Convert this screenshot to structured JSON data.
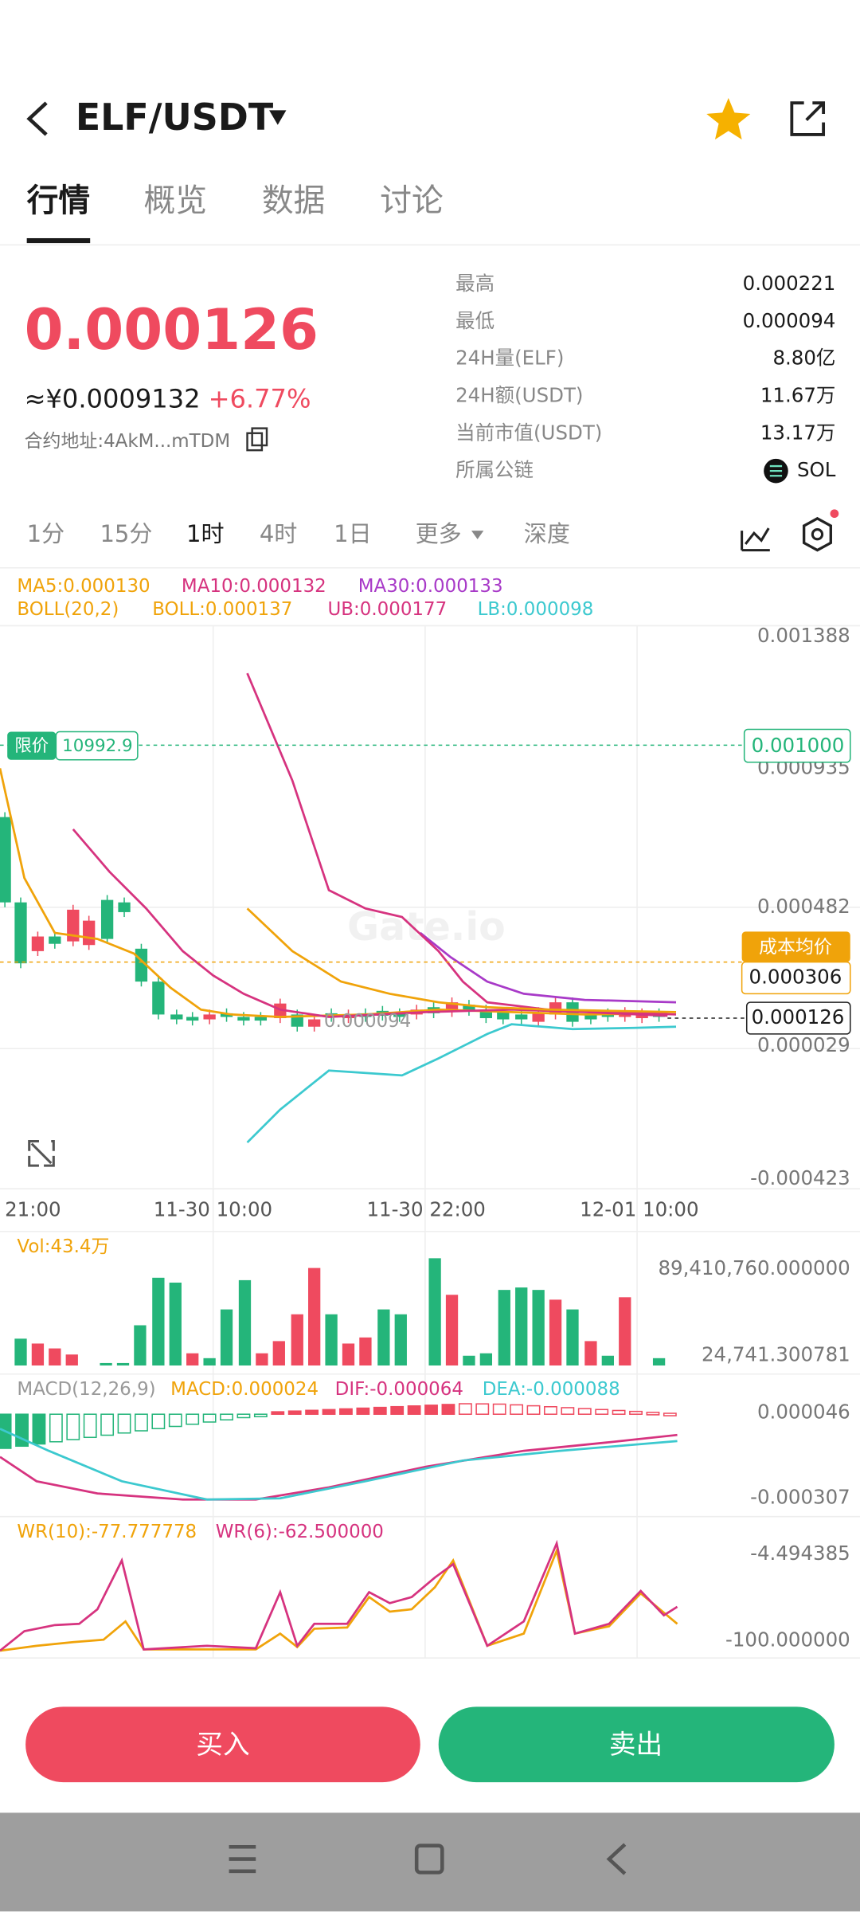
{
  "header": {
    "title": "ELF/USDT"
  },
  "tabs": [
    "行情",
    "概览",
    "数据",
    "讨论"
  ],
  "price": {
    "last": "0.000126",
    "cny": "≈¥0.0009132",
    "change": "+6.77%",
    "contract": "合约地址:4AkM...mTDM"
  },
  "stats": [
    {
      "label": "最高",
      "value": "0.000221"
    },
    {
      "label": "最低",
      "value": "0.000094"
    },
    {
      "label": "24H量(ELF)",
      "value": "8.80亿"
    },
    {
      "label": "24H额(USDT)",
      "value": "11.67万"
    },
    {
      "label": "当前市值(USDT)",
      "value": "13.17万"
    },
    {
      "label": "所属公链",
      "value": "SOL"
    }
  ],
  "timeframes": [
    "1分",
    "15分",
    "1时",
    "4时",
    "1日",
    "更多",
    "深度"
  ],
  "indicators": {
    "ma": [
      "MA5:0.000130",
      "MA10:0.000132",
      "MA30:0.000133"
    ],
    "boll": [
      "BOLL(20,2)",
      "BOLL:0.000137",
      "UB:0.000177",
      "LB:0.000098"
    ]
  },
  "chart": {
    "watermark": "Gate.io",
    "yaxis": [
      "0.001388",
      "0.000935",
      "0.000482",
      "0.000029",
      "-0.000423"
    ],
    "xaxis": [
      "21:00",
      "11-30 10:00",
      "11-30 22:00",
      "12-01 10:00"
    ],
    "limit": {
      "label": "限价",
      "value": "10992.9",
      "price": "0.001000"
    },
    "cost": {
      "label": "成本均价",
      "value": "0.000306"
    },
    "current": "0.000126",
    "low": "0.000094"
  },
  "volume": {
    "label": "Vol:43.4万",
    "max": "89,410,760.000000",
    "min": "24,741.300781"
  },
  "macd": {
    "labels": [
      "MACD(12,26,9)",
      "MACD:0.000024",
      "DIF:-0.000064",
      "DEA:-0.000088"
    ],
    "axis": [
      "0.000046",
      "-0.000307"
    ]
  },
  "wr": {
    "labels": [
      "WR(10):-77.777778",
      "WR(6):-62.500000"
    ],
    "axis": [
      "-4.494385",
      "-100.000000"
    ]
  },
  "buttons": {
    "buy": "买入",
    "sell": "卖出"
  }
}
